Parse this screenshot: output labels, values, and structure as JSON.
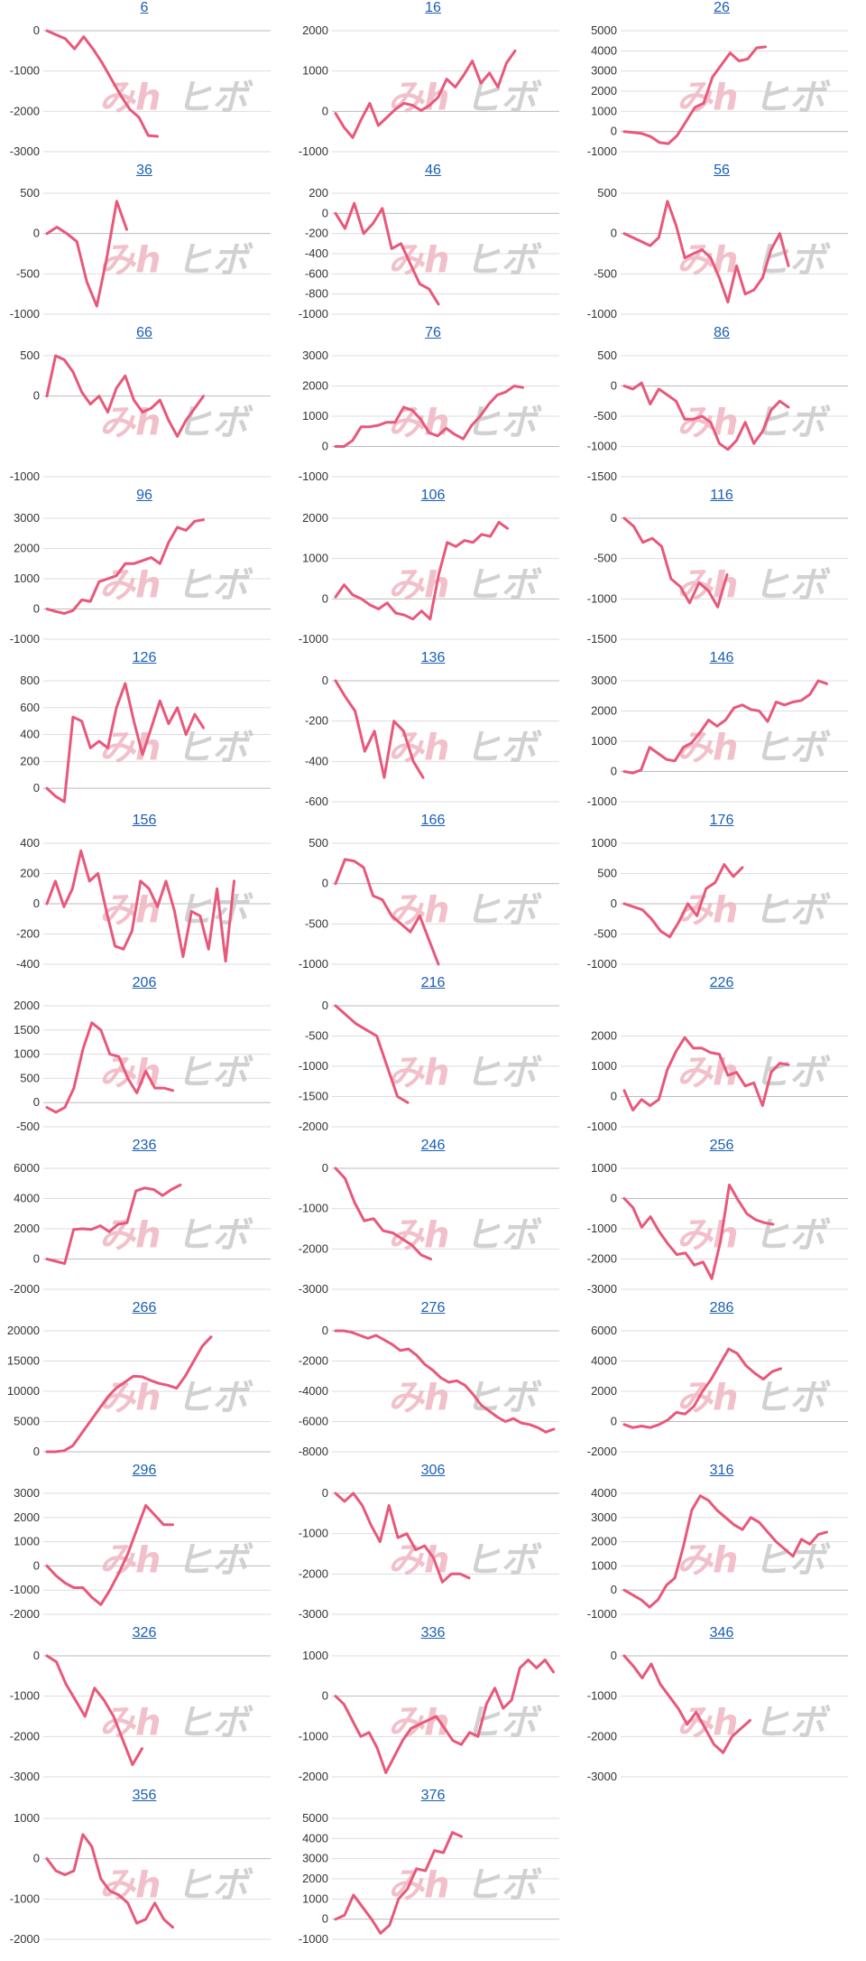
{
  "colors": {
    "line": "#e8587a",
    "grid": "#dddddd",
    "axis": "#bbbbbb",
    "title": "#1a5fb4"
  },
  "watermark": {
    "left": "みh",
    "right": "ヒボ"
  },
  "chart_data": [
    {
      "type": "line",
      "title": "6",
      "ylim": [
        -3000,
        0
      ],
      "ticks": [
        0,
        -1000,
        -2000,
        -3000
      ],
      "values": [
        0,
        -100,
        -200,
        -450,
        -150,
        -450,
        -800,
        -1200,
        -1600,
        -1950,
        -2150,
        -2600,
        -2620
      ]
    },
    {
      "type": "line",
      "title": "16",
      "ylim": [
        -1000,
        2000
      ],
      "ticks": [
        2000,
        1000,
        0,
        -1000
      ],
      "values": [
        -50,
        -400,
        -650,
        -200,
        200,
        -350,
        -150,
        50,
        200,
        150,
        20,
        150,
        350,
        800,
        600,
        900,
        1250,
        700,
        950,
        600,
        1200,
        1500
      ]
    },
    {
      "type": "line",
      "title": "26",
      "ylim": [
        -1000,
        5000
      ],
      "ticks": [
        5000,
        4000,
        3000,
        2000,
        1000,
        0,
        -1000
      ],
      "values": [
        0,
        -50,
        -100,
        -250,
        -550,
        -600,
        -200,
        500,
        1200,
        1400,
        2700,
        3300,
        3900,
        3500,
        3600,
        4150,
        4200
      ]
    },
    {
      "type": "line",
      "title": "36",
      "ylim": [
        -1000,
        500
      ],
      "ticks": [
        500,
        0,
        -500,
        -1000
      ],
      "values": [
        0,
        80,
        0,
        -100,
        -600,
        -900,
        -300,
        400,
        50
      ]
    },
    {
      "type": "line",
      "title": "46",
      "ylim": [
        -1000,
        200
      ],
      "ticks": [
        200,
        0,
        -200,
        -400,
        -600,
        -800,
        -1000
      ],
      "values": [
        0,
        -150,
        100,
        -200,
        -100,
        50,
        -350,
        -300,
        -500,
        -700,
        -750,
        -900
      ]
    },
    {
      "type": "line",
      "title": "56",
      "ylim": [
        -1000,
        500
      ],
      "ticks": [
        500,
        0,
        -500,
        -1000
      ],
      "values": [
        0,
        -50,
        -100,
        -150,
        -50,
        400,
        100,
        -300,
        -250,
        -200,
        -300,
        -550,
        -850,
        -400,
        -750,
        -700,
        -550,
        -200,
        0,
        -400
      ]
    },
    {
      "type": "line",
      "title": "66",
      "ylim": [
        -1000,
        500
      ],
      "ticks": [
        500,
        0,
        -1000
      ],
      "values": [
        0,
        500,
        450,
        300,
        50,
        -100,
        0,
        -200,
        100,
        250,
        -50,
        -200,
        -150,
        -50,
        -300,
        -500,
        -300,
        -150,
        0
      ]
    },
    {
      "type": "line",
      "title": "76",
      "ylim": [
        -1000,
        3000
      ],
      "ticks": [
        3000,
        2000,
        1000,
        0,
        -1000
      ],
      "values": [
        0,
        0,
        200,
        650,
        650,
        700,
        800,
        800,
        1300,
        1200,
        900,
        450,
        350,
        600,
        400,
        250,
        700,
        1000,
        1400,
        1700,
        1800,
        2000,
        1950
      ]
    },
    {
      "type": "line",
      "title": "86",
      "ylim": [
        -1500,
        500
      ],
      "ticks": [
        500,
        0,
        -500,
        -1000,
        -1500
      ],
      "values": [
        0,
        -50,
        50,
        -300,
        -50,
        -150,
        -250,
        -550,
        -550,
        -500,
        -600,
        -950,
        -1050,
        -900,
        -600,
        -950,
        -750,
        -400,
        -250,
        -350
      ]
    },
    {
      "type": "line",
      "title": "96",
      "ylim": [
        -1000,
        3000
      ],
      "ticks": [
        3000,
        2000,
        1000,
        0,
        -1000
      ],
      "values": [
        0,
        -80,
        -150,
        -50,
        300,
        250,
        900,
        1000,
        1100,
        1500,
        1500,
        1600,
        1700,
        1500,
        2200,
        2700,
        2600,
        2900,
        2950
      ]
    },
    {
      "type": "line",
      "title": "106",
      "ylim": [
        -1000,
        2000
      ],
      "ticks": [
        2000,
        1000,
        0,
        -1000
      ],
      "values": [
        50,
        350,
        100,
        0,
        -150,
        -250,
        -100,
        -350,
        -400,
        -500,
        -300,
        -500,
        600,
        1400,
        1300,
        1450,
        1400,
        1600,
        1550,
        1900,
        1750
      ]
    },
    {
      "type": "line",
      "title": "116",
      "ylim": [
        -1500,
        0
      ],
      "ticks": [
        0,
        -500,
        -1000,
        -1500
      ],
      "values": [
        0,
        -100,
        -300,
        -250,
        -350,
        -750,
        -850,
        -1050,
        -800,
        -900,
        -1100,
        -700
      ]
    },
    {
      "type": "line",
      "title": "126",
      "ylim": [
        -100,
        800
      ],
      "ticks": [
        800,
        600,
        400,
        200,
        0
      ],
      "values": [
        0,
        -60,
        -100,
        530,
        500,
        300,
        350,
        300,
        600,
        780,
        500,
        250,
        450,
        650,
        480,
        600,
        400,
        550,
        450
      ]
    },
    {
      "type": "line",
      "title": "136",
      "ylim": [
        -600,
        0
      ],
      "ticks": [
        0,
        -200,
        -400,
        -600
      ],
      "values": [
        0,
        -80,
        -150,
        -350,
        -250,
        -480,
        -200,
        -250,
        -400,
        -480
      ]
    },
    {
      "type": "line",
      "title": "146",
      "ylim": [
        -1000,
        3000
      ],
      "ticks": [
        3000,
        2000,
        1000,
        0,
        -1000
      ],
      "values": [
        0,
        -50,
        50,
        800,
        600,
        400,
        350,
        800,
        950,
        1300,
        1700,
        1500,
        1700,
        2100,
        2200,
        2050,
        2000,
        1650,
        2300,
        2200,
        2300,
        2350,
        2550,
        3000,
        2900
      ]
    },
    {
      "type": "line",
      "title": "156",
      "ylim": [
        -400,
        400
      ],
      "ticks": [
        400,
        200,
        0,
        -200,
        -400
      ],
      "values": [
        0,
        150,
        -20,
        100,
        350,
        150,
        200,
        -50,
        -280,
        -300,
        -180,
        150,
        100,
        -20,
        150,
        -50,
        -350,
        -50,
        -80,
        -300,
        100,
        -380,
        150
      ]
    },
    {
      "type": "line",
      "title": "166",
      "ylim": [
        -1000,
        500
      ],
      "ticks": [
        500,
        0,
        -500,
        -1000
      ],
      "values": [
        0,
        300,
        280,
        200,
        -150,
        -200,
        -400,
        -500,
        -600,
        -400,
        -700,
        -1000
      ]
    },
    {
      "type": "line",
      "title": "176",
      "ylim": [
        -1000,
        1000
      ],
      "ticks": [
        1000,
        500,
        0,
        -500,
        -1000
      ],
      "values": [
        0,
        -50,
        -100,
        -250,
        -450,
        -550,
        -300,
        0,
        -200,
        250,
        350,
        650,
        450,
        600
      ]
    },
    {
      "type": "line",
      "title": "206",
      "ylim": [
        -500,
        2000
      ],
      "ticks": [
        2000,
        1500,
        1000,
        500,
        0,
        -500
      ],
      "values": [
        -100,
        -200,
        -100,
        300,
        1100,
        1650,
        1500,
        1000,
        950,
        500,
        200,
        650,
        300,
        300,
        250
      ]
    },
    {
      "type": "line",
      "title": "216",
      "ylim": [
        -2000,
        0
      ],
      "ticks": [
        0,
        -500,
        -1000,
        -1500,
        -2000
      ],
      "values": [
        0,
        -150,
        -300,
        -400,
        -500,
        -1000,
        -1500,
        -1600
      ]
    },
    {
      "type": "line",
      "title": "226",
      "ylim": [
        -1000,
        3000
      ],
      "ticks": [
        2000,
        1000,
        0,
        -1000
      ],
      "values": [
        200,
        -450,
        -100,
        -300,
        -100,
        900,
        1500,
        1950,
        1600,
        1600,
        1450,
        1400,
        700,
        800,
        350,
        450,
        -300,
        800,
        1100,
        1050
      ]
    },
    {
      "type": "line",
      "title": "236",
      "ylim": [
        -2000,
        6000
      ],
      "ticks": [
        6000,
        4000,
        2000,
        0,
        -2000
      ],
      "values": [
        0,
        -150,
        -300,
        1950,
        2000,
        1950,
        2200,
        1800,
        2300,
        2400,
        4500,
        4700,
        4600,
        4200,
        4600,
        4900
      ]
    },
    {
      "type": "line",
      "title": "246",
      "ylim": [
        -3000,
        0
      ],
      "ticks": [
        0,
        -1000,
        -2000,
        -3000
      ],
      "values": [
        0,
        -250,
        -850,
        -1300,
        -1250,
        -1550,
        -1600,
        -1750,
        -1900,
        -2150,
        -2250
      ]
    },
    {
      "type": "line",
      "title": "256",
      "ylim": [
        -3000,
        1000
      ],
      "ticks": [
        1000,
        0,
        -1000,
        -2000,
        -3000
      ],
      "values": [
        0,
        -300,
        -950,
        -600,
        -1100,
        -1500,
        -1850,
        -1800,
        -2200,
        -2100,
        -2650,
        -1400,
        450,
        -50,
        -500,
        -700,
        -800,
        -850
      ]
    },
    {
      "type": "line",
      "title": "266",
      "ylim": [
        0,
        20000
      ],
      "ticks": [
        20000,
        15000,
        10000,
        5000,
        0
      ],
      "values": [
        0,
        0,
        200,
        1000,
        3000,
        5000,
        7000,
        9000,
        10500,
        11500,
        12500,
        12400,
        11800,
        11300,
        11000,
        10500,
        12500,
        15000,
        17500,
        19000
      ]
    },
    {
      "type": "line",
      "title": "276",
      "ylim": [
        -8000,
        0
      ],
      "ticks": [
        0,
        -2000,
        -4000,
        -6000,
        -8000
      ],
      "values": [
        0,
        0,
        -100,
        -300,
        -500,
        -300,
        -600,
        -900,
        -1300,
        -1200,
        -1600,
        -2200,
        -2600,
        -3100,
        -3400,
        -3300,
        -3600,
        -4200,
        -4900,
        -5300,
        -5700,
        -6000,
        -5800,
        -6100,
        -6200,
        -6400,
        -6700,
        -6500
      ]
    },
    {
      "type": "line",
      "title": "286",
      "ylim": [
        -2000,
        6000
      ],
      "ticks": [
        6000,
        4000,
        2000,
        0,
        -2000
      ],
      "values": [
        -200,
        -400,
        -300,
        -400,
        -200,
        100,
        600,
        500,
        1000,
        2000,
        2800,
        3800,
        4800,
        4500,
        3700,
        3200,
        2800,
        3300,
        3500
      ]
    },
    {
      "type": "line",
      "title": "296",
      "ylim": [
        -2000,
        3000
      ],
      "ticks": [
        3000,
        2000,
        1000,
        0,
        -1000,
        -2000
      ],
      "values": [
        0,
        -400,
        -700,
        -900,
        -900,
        -1300,
        -1600,
        -1000,
        -300,
        500,
        1500,
        2500,
        2100,
        1700,
        1700
      ]
    },
    {
      "type": "line",
      "title": "306",
      "ylim": [
        -3000,
        0
      ],
      "ticks": [
        0,
        -1000,
        -2000,
        -3000
      ],
      "values": [
        0,
        -200,
        0,
        -300,
        -800,
        -1200,
        -300,
        -1100,
        -1000,
        -1400,
        -1300,
        -1600,
        -2200,
        -2000,
        -2000,
        -2100
      ]
    },
    {
      "type": "line",
      "title": "316",
      "ylim": [
        -1000,
        4000
      ],
      "ticks": [
        4000,
        3000,
        2000,
        1000,
        0,
        -1000
      ],
      "values": [
        0,
        -200,
        -400,
        -700,
        -400,
        200,
        500,
        1800,
        3300,
        3900,
        3700,
        3300,
        3000,
        2700,
        2500,
        3000,
        2800,
        2400,
        2000,
        1700,
        1400,
        2100,
        1900,
        2300,
        2400
      ]
    },
    {
      "type": "line",
      "title": "326",
      "ylim": [
        -3000,
        0
      ],
      "ticks": [
        0,
        -1000,
        -2000,
        -3000
      ],
      "values": [
        0,
        -150,
        -700,
        -1100,
        -1500,
        -800,
        -1100,
        -1500,
        -2100,
        -2700,
        -2300
      ]
    },
    {
      "type": "line",
      "title": "336",
      "ylim": [
        -2000,
        1000
      ],
      "ticks": [
        1000,
        0,
        -1000,
        -2000
      ],
      "values": [
        0,
        -200,
        -600,
        -1000,
        -900,
        -1300,
        -1900,
        -1500,
        -1100,
        -800,
        -700,
        -600,
        -500,
        -800,
        -1100,
        -1200,
        -900,
        -1000,
        -200,
        200,
        -300,
        -100,
        700,
        900,
        700,
        900,
        600
      ]
    },
    {
      "type": "line",
      "title": "346",
      "ylim": [
        -3000,
        0
      ],
      "ticks": [
        0,
        -1000,
        -2000,
        -3000
      ],
      "values": [
        0,
        -250,
        -550,
        -200,
        -700,
        -1000,
        -1300,
        -1700,
        -1400,
        -1800,
        -2200,
        -2400,
        -2000,
        -1800,
        -1600
      ]
    },
    {
      "type": "line",
      "title": "356",
      "ylim": [
        -2000,
        1000
      ],
      "ticks": [
        1000,
        0,
        -1000,
        -2000
      ],
      "values": [
        0,
        -300,
        -400,
        -300,
        600,
        300,
        -500,
        -800,
        -900,
        -1100,
        -1600,
        -1500,
        -1100,
        -1500,
        -1700
      ]
    },
    {
      "type": "line",
      "title": "376",
      "ylim": [
        -1000,
        5000
      ],
      "ticks": [
        5000,
        4000,
        3000,
        2000,
        1000,
        0,
        -1000
      ],
      "values": [
        0,
        200,
        1200,
        600,
        0,
        -700,
        -300,
        1000,
        1500,
        2500,
        2400,
        3400,
        3300,
        4300,
        4100
      ]
    }
  ]
}
